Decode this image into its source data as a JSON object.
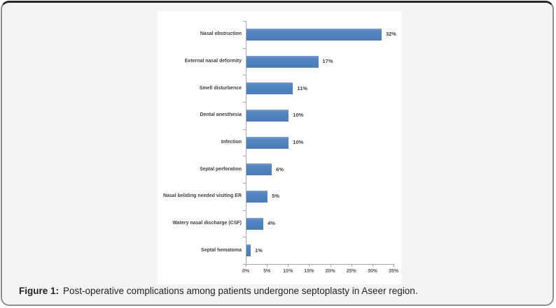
{
  "figure": {
    "caption_label": "Figure 1:",
    "caption_text": "Post-operative complications among patients undergone septoplasty in Aseer region."
  },
  "chart_data": {
    "type": "bar",
    "orientation": "horizontal",
    "title": "",
    "xlabel": "",
    "ylabel": "",
    "xlim": [
      0,
      35
    ],
    "x_tick_values": [
      0,
      5,
      10,
      15,
      20,
      25,
      30,
      35
    ],
    "x_tick_labels": [
      "0%",
      "5%",
      "10%",
      "15%",
      "20%",
      "25%",
      "30%",
      "35%"
    ],
    "grid": false,
    "legend": "none",
    "categories": [
      "Nasal obstruction",
      "External nasal deformity",
      "Smell disturbence",
      "Dental anesthesia",
      "Infection",
      "Septal perforation",
      "Nasal beliding needed visiting ER",
      "Watery nasal discharge (CSF)",
      "Septal hematoma"
    ],
    "values": [
      32,
      17,
      11,
      10,
      10,
      6,
      5,
      4,
      1
    ],
    "data_labels": [
      "32%",
      "17%",
      "11%",
      "10%",
      "10%",
      "6%",
      "5%",
      "4%",
      "1%"
    ]
  },
  "colors": {
    "bar": "#4f81bd",
    "panel_background": "#ffffff",
    "card_background": "#f4f4f4",
    "axis": "#a6a6a6",
    "category_text": "#3f3f3f",
    "value_text": "#404040"
  }
}
